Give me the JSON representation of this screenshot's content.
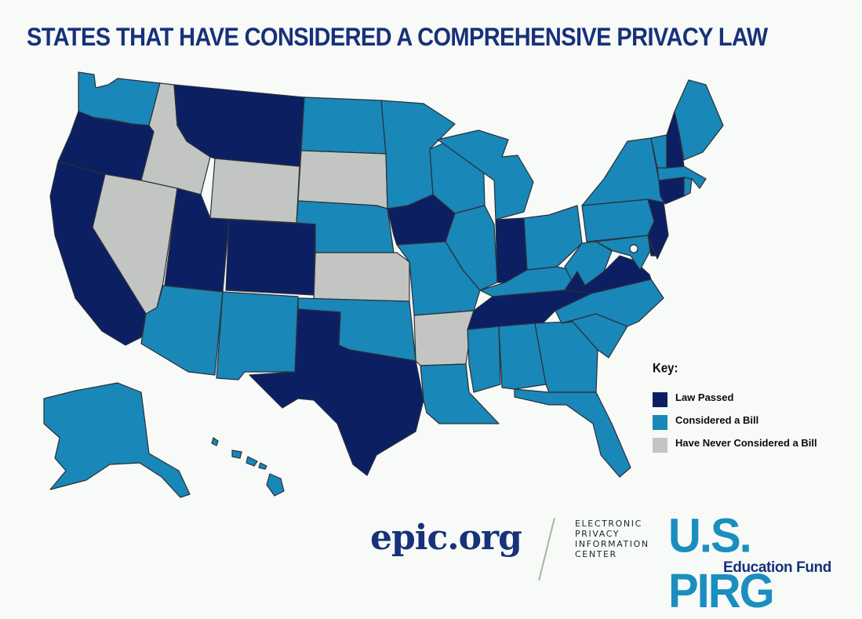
{
  "title": "STATES THAT HAVE CONSIDERED A COMPREHENSIVE PRIVACY LAW",
  "colors": {
    "law_passed": "#0d1f63",
    "considered": "#1987b7",
    "never": "#c2c5c2",
    "title": "#17317a",
    "background": "#f8faf8"
  },
  "legend": {
    "title": "Key:",
    "items": [
      {
        "label": "Law Passed",
        "status": "law_passed"
      },
      {
        "label": "Considered a Bill",
        "status": "considered"
      },
      {
        "label": "Have Never Considered a Bill",
        "status": "never"
      }
    ]
  },
  "states": {
    "law_passed": [
      "Oregon",
      "California",
      "Utah",
      "Colorado",
      "Montana",
      "Texas",
      "Iowa",
      "Indiana",
      "Tennessee",
      "Virginia",
      "New Hampshire",
      "Connecticut",
      "New Jersey",
      "Delaware"
    ],
    "considered": [
      "Washington",
      "Alaska",
      "Hawaii",
      "Arizona",
      "New Mexico",
      "North Dakota",
      "Minnesota",
      "Wisconsin",
      "Michigan",
      "Illinois",
      "Missouri",
      "Nebraska",
      "Oklahoma",
      "Louisiana",
      "Mississippi",
      "Alabama",
      "Georgia",
      "Florida",
      "South Carolina",
      "North Carolina",
      "Kentucky",
      "Ohio",
      "West Virginia",
      "Pennsylvania",
      "New York",
      "Vermont",
      "Maine",
      "Massachusetts",
      "Rhode Island",
      "Maryland"
    ],
    "never": [
      "Idaho",
      "Nevada",
      "Wyoming",
      "South Dakota",
      "Kansas",
      "Arkansas"
    ]
  },
  "logos": {
    "epic": {
      "wordmark": "epic.org",
      "subtitle_lines": [
        "ELECTRONIC",
        "PRIVACY",
        "INFORMATION",
        "CENTER"
      ]
    },
    "pirg": {
      "wordmark": "U.S. PIRG",
      "subtitle": "Education Fund"
    }
  }
}
